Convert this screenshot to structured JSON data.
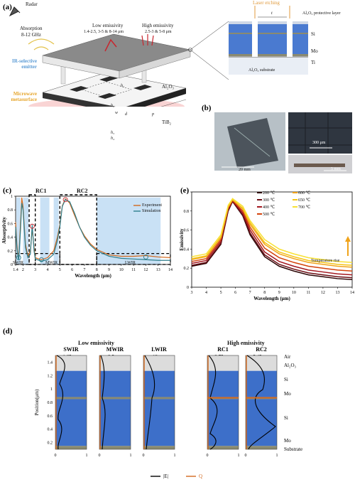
{
  "panel_a": {
    "label": "(a)",
    "radar": "Radar",
    "absorption": "Absorption",
    "absorption_band": "8-12 GHz",
    "low_emissivity": "Low emissivity",
    "low_emissivity_bands": "1.4-2.5, 3-5 & 8-14 μm",
    "high_emissivity": "High emissivity",
    "high_emissivity_bands": "2.5-3 & 5-8 μm",
    "ir_emitter": "IR-selective emitter",
    "mw_metasurface": "Microwave metasurface",
    "al2o3": "Al₂O₃",
    "tib2": "TiB₂",
    "laser": "Laser etching",
    "protective": "Al₂O₃ protective layer",
    "si": "Si",
    "mo": "Mo",
    "ti": "Ti",
    "substrate": "Al₂O₃ substrate",
    "t_label": "t",
    "p_label": "p",
    "h_labels": [
      "h₁",
      "h₂",
      "h₃",
      "h₄"
    ],
    "w_label": "w",
    "d_label": "d"
  },
  "panel_b": {
    "label": "(b)",
    "scale1": "20 mm",
    "scale2": "300 μm",
    "scale3": "5 mm"
  },
  "panel_c": {
    "label": "(c)",
    "regions": [
      "RC1",
      "RC2",
      "SWIR",
      "MWIR",
      "LWIR"
    ],
    "legend": [
      "Experiment",
      "Simulation"
    ],
    "legend_colors": [
      "#d2691e",
      "#2e7e8c"
    ]
  },
  "panel_e": {
    "label": "(e)",
    "legend_col1": [
      "200 ℃",
      "300 ℃",
      "400 ℃",
      "500 ℃"
    ],
    "legend_col2": [
      "600 ℃",
      "650 ℃",
      "700 ℃"
    ],
    "colors": [
      "#2b0505",
      "#6b0d14",
      "#a3171f",
      "#d4430c",
      "#f0a31a",
      "#f5c518",
      "#f7e135"
    ],
    "temp_note": "Temperature rise"
  },
  "panel_d": {
    "label": "(d)",
    "low_title": "Low emissivity",
    "high_title": "High emissivity",
    "columns": [
      {
        "name": "SWIR",
        "wl": "1.65 μm"
      },
      {
        "name": "MWIR",
        "wl": "3.5 μm"
      },
      {
        "name": "LWIR",
        "wl": "12 μm"
      },
      {
        "name": "RC1",
        "wl": "2.75 μm"
      },
      {
        "name": "RC2",
        "wl": "5.45 μm"
      }
    ],
    "layer_labels": [
      "Air",
      "Al₂O₃",
      "Si",
      "Mo",
      "Si",
      "Mo",
      "Substrate"
    ],
    "ylabel": "Position(μm)",
    "yticks": [
      "1.4",
      "1.2",
      "1",
      "0.8",
      "0.6",
      "0.4",
      "0.2"
    ],
    "xticks": [
      "0",
      "1"
    ],
    "legend": [
      "|E|",
      "Q"
    ],
    "legend_colors": [
      "#000000",
      "#d2691e"
    ],
    "layer_colors": {
      "air": "#dcdcdc",
      "si": "#3d6fc9",
      "mo": "#8a8a70"
    }
  },
  "chart_data": [
    {
      "type": "line",
      "panel": "(c)",
      "xlabel": "Wavelength (μm)",
      "ylabel": "Absorptivity",
      "xlim": [
        1.4,
        14
      ],
      "ylim": [
        0,
        1
      ],
      "xticks": [
        1.4,
        2,
        3,
        4,
        5,
        6,
        7,
        8,
        9,
        10,
        11,
        12,
        13,
        14
      ],
      "yticks": [
        0,
        0.2,
        0.4,
        0.6,
        0.8,
        1
      ],
      "series": [
        {
          "name": "Experiment",
          "x": [
            1.4,
            1.5,
            1.6,
            1.65,
            1.8,
            1.9,
            2.0,
            2.2,
            2.4,
            2.6,
            2.75,
            2.9,
            3.0,
            3.3,
            3.5,
            4.0,
            4.5,
            4.8,
            5.0,
            5.2,
            5.45,
            5.8,
            6.2,
            6.6,
            7.0,
            7.5,
            8.0,
            9.0,
            10.0,
            11.0,
            12.0,
            13.0,
            14.0
          ],
          "y": [
            0.62,
            0.3,
            0.12,
            0.08,
            0.6,
            0.98,
            0.85,
            0.3,
            0.12,
            0.2,
            0.52,
            0.25,
            0.1,
            0.08,
            0.07,
            0.1,
            0.2,
            0.4,
            0.58,
            0.86,
            0.96,
            0.9,
            0.72,
            0.55,
            0.42,
            0.3,
            0.22,
            0.14,
            0.12,
            0.12,
            0.13,
            0.11,
            0.1
          ]
        },
        {
          "name": "Simulation",
          "x": [
            1.4,
            1.5,
            1.6,
            1.65,
            1.8,
            1.9,
            2.0,
            2.2,
            2.4,
            2.6,
            2.75,
            2.9,
            3.0,
            3.3,
            3.5,
            4.0,
            4.5,
            4.8,
            5.0,
            5.2,
            5.45,
            5.8,
            6.2,
            6.6,
            7.0,
            7.5,
            8.0,
            9.0,
            10.0,
            11.0,
            12.0,
            13.0,
            14.0
          ],
          "y": [
            0.55,
            0.25,
            0.1,
            0.07,
            0.5,
            0.9,
            0.8,
            0.25,
            0.1,
            0.15,
            0.58,
            0.2,
            0.08,
            0.06,
            0.05,
            0.07,
            0.15,
            0.35,
            0.55,
            0.85,
            0.95,
            0.92,
            0.75,
            0.55,
            0.4,
            0.28,
            0.2,
            0.12,
            0.09,
            0.08,
            0.07,
            0.06,
            0.06
          ]
        }
      ],
      "regions": [
        {
          "name": "RC1",
          "x": [
            2.5,
            3.0
          ]
        },
        {
          "name": "RC2",
          "x": [
            5.0,
            8.0
          ]
        }
      ],
      "markers": [
        {
          "x": 1.65,
          "y": 0.1
        },
        {
          "x": 2.75,
          "y": 0.56
        },
        {
          "x": 3.5,
          "y": 0.07
        },
        {
          "x": 5.45,
          "y": 0.95
        },
        {
          "x": 12.0,
          "y": 0.11
        }
      ]
    },
    {
      "type": "line",
      "panel": "(e)",
      "xlabel": "Wavelength (μm)",
      "ylabel": "Emissivity",
      "xlim": [
        3,
        14
      ],
      "ylim": [
        0,
        1
      ],
      "xticks": [
        3,
        4,
        5,
        6,
        7,
        8,
        9,
        10,
        11,
        12,
        13,
        14
      ],
      "yticks": [
        0,
        0.2,
        0.4,
        0.6,
        0.8,
        1
      ],
      "series": [
        {
          "name": "200 ℃",
          "x": [
            3,
            4,
            5,
            5.5,
            5.8,
            6.5,
            7,
            8,
            9,
            10,
            11,
            12,
            13,
            14
          ],
          "y": [
            0.22,
            0.25,
            0.45,
            0.8,
            0.9,
            0.75,
            0.55,
            0.32,
            0.22,
            0.17,
            0.13,
            0.11,
            0.09,
            0.08
          ]
        },
        {
          "name": "300 ℃",
          "x": [
            3,
            4,
            5,
            5.5,
            5.8,
            6.5,
            7,
            8,
            9,
            10,
            11,
            12,
            13,
            14
          ],
          "y": [
            0.23,
            0.26,
            0.46,
            0.81,
            0.9,
            0.76,
            0.57,
            0.34,
            0.24,
            0.19,
            0.15,
            0.13,
            0.11,
            0.1
          ]
        },
        {
          "name": "400 ℃",
          "x": [
            3,
            4,
            5,
            5.5,
            5.8,
            6.5,
            7,
            8,
            9,
            10,
            11,
            12,
            13,
            14
          ],
          "y": [
            0.25,
            0.28,
            0.48,
            0.82,
            0.91,
            0.78,
            0.6,
            0.37,
            0.27,
            0.22,
            0.18,
            0.16,
            0.14,
            0.13
          ]
        },
        {
          "name": "500 ℃",
          "x": [
            3,
            4,
            5,
            5.5,
            5.8,
            6.5,
            7,
            8,
            9,
            10,
            11,
            12,
            13,
            14
          ],
          "y": [
            0.27,
            0.3,
            0.5,
            0.83,
            0.91,
            0.8,
            0.63,
            0.41,
            0.31,
            0.26,
            0.22,
            0.2,
            0.18,
            0.17
          ]
        },
        {
          "name": "600 ℃",
          "x": [
            3,
            4,
            5,
            5.5,
            5.8,
            6.5,
            7,
            8,
            9,
            10,
            11,
            12,
            13,
            14
          ],
          "y": [
            0.29,
            0.32,
            0.52,
            0.84,
            0.92,
            0.82,
            0.66,
            0.45,
            0.35,
            0.3,
            0.26,
            0.24,
            0.22,
            0.21
          ]
        },
        {
          "name": "650 ℃",
          "x": [
            3,
            4,
            5,
            5.5,
            5.8,
            6.5,
            7,
            8,
            9,
            10,
            11,
            12,
            13,
            14
          ],
          "y": [
            0.3,
            0.33,
            0.53,
            0.85,
            0.92,
            0.83,
            0.68,
            0.47,
            0.37,
            0.32,
            0.28,
            0.26,
            0.24,
            0.23
          ]
        },
        {
          "name": "700 ℃",
          "x": [
            3,
            4,
            5,
            5.5,
            5.8,
            6.5,
            7,
            8,
            9,
            10,
            11,
            12,
            13,
            14
          ],
          "y": [
            0.32,
            0.35,
            0.55,
            0.86,
            0.93,
            0.85,
            0.7,
            0.5,
            0.4,
            0.35,
            0.31,
            0.29,
            0.27,
            0.26
          ]
        }
      ]
    }
  ]
}
